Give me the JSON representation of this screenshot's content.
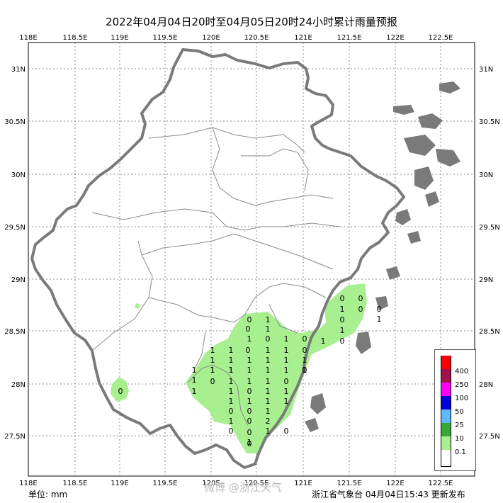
{
  "title": "2022年04月04日20时至04月05日20时24小时累计雨量预报",
  "lon_ticks": [
    "118E",
    "118.5E",
    "119E",
    "119.5E",
    "120E",
    "120.5E",
    "121E",
    "121.5E",
    "122E",
    "122.5E"
  ],
  "lat_ticks": [
    "31N",
    "30.5N",
    "30N",
    "29.5N",
    "29N",
    "28.5N",
    "28N",
    "27.5N"
  ],
  "legend": {
    "items": [
      {
        "label": "400",
        "color": "#ff0000"
      },
      {
        "label": "250",
        "color": "#a0124e"
      },
      {
        "label": "100",
        "color": "#ff00ff"
      },
      {
        "label": "50",
        "color": "#0000d8"
      },
      {
        "label": "25",
        "color": "#60b8ff"
      },
      {
        "label": "10",
        "color": "#3aa63a"
      },
      {
        "label": "0.1",
        "color": "#a7ef8f"
      },
      {
        "label": "",
        "color": "#ffffff"
      }
    ]
  },
  "footer": {
    "unit": "单位:  mm",
    "issuer": "浙江省气象台 04月04日15:43 更新发布",
    "watermark": "微博 @浙江天气"
  },
  "station_values": [
    {
      "v": "0"
    },
    {
      "v": "1"
    },
    {
      "v": "0"
    },
    {
      "v": "1"
    },
    {
      "v": "1"
    },
    {
      "v": "0"
    },
    {
      "v": "1"
    },
    {
      "v": "0"
    },
    {
      "v": "1"
    },
    {
      "v": "1"
    },
    {
      "v": "0"
    },
    {
      "v": "1"
    },
    {
      "v": "1"
    },
    {
      "v": "0"
    },
    {
      "v": "1"
    },
    {
      "v": "1"
    },
    {
      "v": "1"
    },
    {
      "v": "1"
    },
    {
      "v": "1"
    },
    {
      "v": "1"
    },
    {
      "v": "1"
    },
    {
      "v": "1"
    },
    {
      "v": "1"
    },
    {
      "v": "1"
    },
    {
      "v": "1"
    },
    {
      "v": "0"
    },
    {
      "v": "1"
    },
    {
      "v": "1"
    },
    {
      "v": "0"
    },
    {
      "v": "1"
    },
    {
      "v": "1"
    },
    {
      "v": "1"
    },
    {
      "v": "0"
    },
    {
      "v": "1"
    },
    {
      "v": "1"
    },
    {
      "v": "0"
    },
    {
      "v": "1"
    },
    {
      "v": "1"
    },
    {
      "v": "1"
    },
    {
      "v": "1"
    },
    {
      "v": "1"
    },
    {
      "v": "1"
    },
    {
      "v": "0"
    },
    {
      "v": "0"
    },
    {
      "v": "1"
    },
    {
      "v": "1"
    },
    {
      "v": "0"
    },
    {
      "v": "2"
    },
    {
      "v": "0"
    },
    {
      "v": "0"
    },
    {
      "v": "0"
    },
    {
      "v": "0"
    },
    {
      "v": "1"
    },
    {
      "v": "0"
    },
    {
      "v": "0"
    },
    {
      "v": "1"
    },
    {
      "v": "0"
    },
    {
      "v": "1"
    },
    {
      "v": "0"
    },
    {
      "v": "1"
    },
    {
      "v": "0"
    },
    {
      "v": "1"
    },
    {
      "v": "1"
    },
    {
      "v": "1"
    },
    {
      "v": "1"
    },
    {
      "v": "0"
    },
    {
      "v": "1"
    },
    {
      "v": "0"
    }
  ]
}
